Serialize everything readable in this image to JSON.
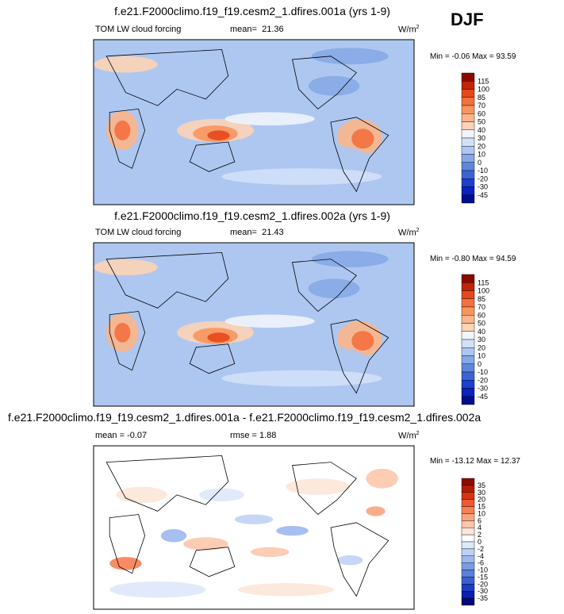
{
  "season": "DJF",
  "panels": [
    {
      "title": "f.e21.F2000climo.f19_f19.cesm2_1.dfires.001a (yrs 1-9)",
      "variable": "TOM LW cloud forcing",
      "mean_label": "mean=",
      "mean_value": "21.36",
      "units": "W/m",
      "units_exp": "2",
      "min_label": "Min =",
      "min_value": "-0.06",
      "max_label": "Max =",
      "max_value": "93.59",
      "levels": [
        "115",
        "100",
        "85",
        "70",
        "60",
        "50",
        "40",
        "30",
        "20",
        "10",
        "0",
        "-10",
        "-20",
        "-30",
        "-45"
      ],
      "colors": [
        "#8b0a00",
        "#c22408",
        "#e6481c",
        "#f4703e",
        "#f8955f",
        "#fbb58a",
        "#fcd3b5",
        "#f1f4fc",
        "#d2e0f8",
        "#aec7f1",
        "#86a9e6",
        "#5d87dc",
        "#3a64d6",
        "#1e3fcf",
        "#0a22c0",
        "#000d8c"
      ]
    },
    {
      "title": "f.e21.F2000climo.f19_f19.cesm2_1.dfires.002a (yrs 1-9)",
      "variable": "TOM LW cloud forcing",
      "mean_label": "mean=",
      "mean_value": "21.43",
      "units": "W/m",
      "units_exp": "2",
      "min_label": "Min =",
      "min_value": "-0.80",
      "max_label": "Max =",
      "max_value": "94.59",
      "levels": [
        "115",
        "100",
        "85",
        "70",
        "60",
        "50",
        "40",
        "30",
        "20",
        "10",
        "0",
        "-10",
        "-20",
        "-30",
        "-45"
      ],
      "colors": [
        "#8b0a00",
        "#c22408",
        "#e6481c",
        "#f4703e",
        "#f8955f",
        "#fbb58a",
        "#fcd3b5",
        "#f1f4fc",
        "#d2e0f8",
        "#aec7f1",
        "#86a9e6",
        "#5d87dc",
        "#3a64d6",
        "#1e3fcf",
        "#0a22c0",
        "#000d8c"
      ]
    },
    {
      "title": "f.e21.F2000climo.f19_f19.cesm2_1.dfires.001a - f.e21.F2000climo.f19_f19.cesm2_1.dfires.002a",
      "mean_label": "mean =",
      "mean_value": "-0.07",
      "rmse_label": "rmse =",
      "rmse_value": "1.88",
      "units": "W/m",
      "units_exp": "2",
      "min_label": "Min =",
      "min_value": "-13.12",
      "max_label": "Max =",
      "max_value": "12.37",
      "levels": [
        "35",
        "30",
        "20",
        "15",
        "10",
        "6",
        "4",
        "2",
        "0",
        "-2",
        "-4",
        "-6",
        "-10",
        "-15",
        "-20",
        "-30",
        "-35"
      ],
      "colors": [
        "#8b0a00",
        "#b51c04",
        "#d83410",
        "#ee5a2c",
        "#f68053",
        "#faa47e",
        "#fcc7ab",
        "#fde6d8",
        "#ffffff",
        "#dde8fa",
        "#bfd1f5",
        "#9cb8ef",
        "#7a9ce6",
        "#5a7fdc",
        "#3a5fd2",
        "#1c3cc6",
        "#0a20b0",
        "#000a78"
      ]
    }
  ],
  "chart_data": [
    {
      "type": "heatmap",
      "title": "f.e21.F2000climo.f19_f19.cesm2_1.dfires.001a (yrs 1-9)",
      "variable": "TOM LW cloud forcing",
      "mean": 21.36,
      "min": -0.06,
      "max": 93.59,
      "contour_levels": [
        -45,
        -30,
        -20,
        -10,
        0,
        10,
        20,
        30,
        40,
        50,
        60,
        70,
        85,
        100,
        115
      ]
    },
    {
      "type": "heatmap",
      "title": "f.e21.F2000climo.f19_f19.cesm2_1.dfires.002a (yrs 1-9)",
      "variable": "TOM LW cloud forcing",
      "mean": 21.43,
      "min": -0.8,
      "max": 94.59,
      "contour_levels": [
        -45,
        -30,
        -20,
        -10,
        0,
        10,
        20,
        30,
        40,
        50,
        60,
        70,
        85,
        100,
        115
      ]
    },
    {
      "type": "heatmap",
      "title": "f.e21.F2000climo.f19_f19.cesm2_1.dfires.001a - f.e21.F2000climo.f19_f19.cesm2_1.dfires.002a",
      "mean": -0.07,
      "rmse": 1.88,
      "min": -13.12,
      "max": 12.37,
      "contour_levels": [
        -35,
        -30,
        -20,
        -15,
        -10,
        -6,
        -4,
        -2,
        0,
        2,
        4,
        6,
        10,
        15,
        20,
        30,
        35
      ]
    }
  ]
}
